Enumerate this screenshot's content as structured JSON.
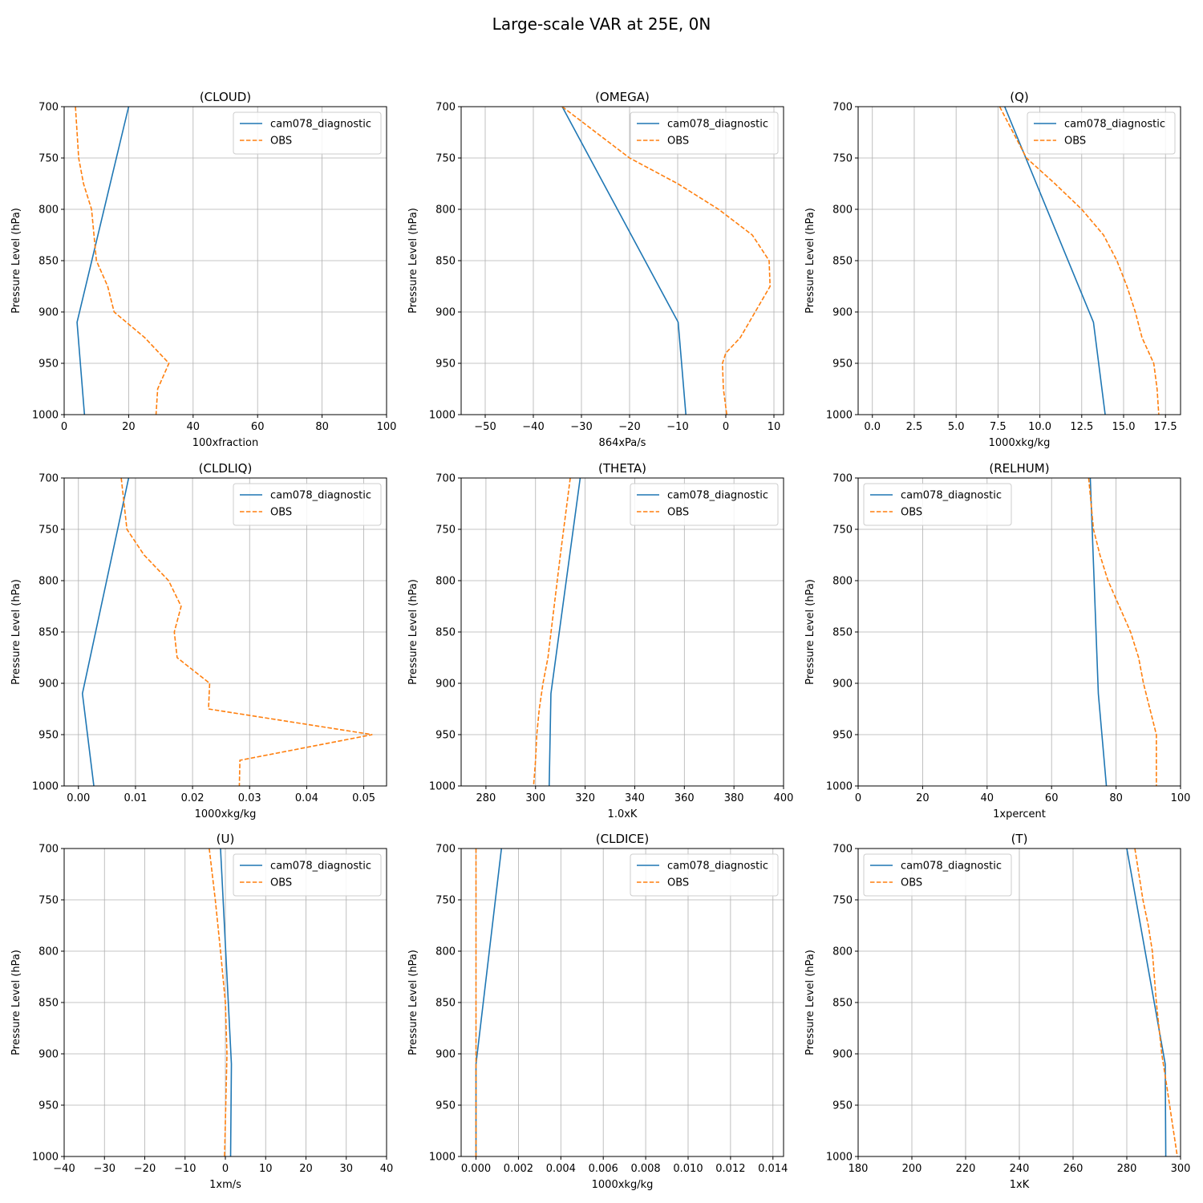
{
  "figure": {
    "title": "Large-scale VAR at 25E, 0N"
  },
  "colors": {
    "model": "#1f77b4",
    "obs": "#ff7f0e",
    "grid": "#b0b0b0",
    "axis": "#000000"
  },
  "chart_data": [
    {
      "type": "line",
      "title": "(CLOUD)",
      "xlabel": "100xfraction",
      "ylabel": "Pressure Level (hPa)",
      "xlim": [
        0,
        100
      ],
      "xticks": [
        0,
        20,
        40,
        60,
        80,
        100
      ],
      "xtick_labels": [
        "0",
        "20",
        "40",
        "60",
        "80",
        "100"
      ],
      "ylim": [
        700,
        1000
      ],
      "y_inverted": true,
      "yticks": [
        700,
        750,
        800,
        850,
        900,
        950,
        1000
      ],
      "ytick_labels": [
        "700",
        "750",
        "800",
        "850",
        "900",
        "950",
        "1000"
      ],
      "grid": true,
      "legend_position": "upper-right",
      "series": [
        {
          "name": "cam078_diagnostic",
          "style": "solid",
          "x": [
            20,
            4,
            6.3
          ],
          "y": [
            700,
            910,
            1000
          ]
        },
        {
          "name": "OBS",
          "style": "dashed",
          "x": [
            3.5,
            4,
            4.5,
            6,
            8.5,
            10,
            13.5,
            15.5,
            25,
            32.5,
            29,
            28.5
          ],
          "y": [
            700,
            725,
            750,
            775,
            800,
            850,
            875,
            900,
            925,
            950,
            975,
            1000
          ]
        }
      ]
    },
    {
      "type": "line",
      "title": "(OMEGA)",
      "xlabel": "864xPa/s",
      "ylabel": "Pressure Level (hPa)",
      "xlim": [
        -55,
        12
      ],
      "xticks": [
        -50,
        -40,
        -30,
        -20,
        -10,
        0,
        10
      ],
      "xtick_labels": [
        "−50",
        "−40",
        "−30",
        "−20",
        "−10",
        "0",
        "10"
      ],
      "ylim": [
        700,
        1000
      ],
      "y_inverted": true,
      "yticks": [
        700,
        750,
        800,
        850,
        900,
        950,
        1000
      ],
      "ytick_labels": [
        "700",
        "750",
        "800",
        "850",
        "900",
        "950",
        "1000"
      ],
      "grid": true,
      "legend_position": "upper-right",
      "series": [
        {
          "name": "cam078_diagnostic",
          "style": "solid",
          "x": [
            -34,
            -9.9,
            -8.3
          ],
          "y": [
            700,
            910,
            1000
          ]
        },
        {
          "name": "OBS",
          "style": "dashed",
          "x": [
            -34,
            -20,
            -10,
            -1.5,
            5.5,
            9,
            9.2,
            3,
            0,
            -0.7,
            -0.5,
            0.2
          ],
          "y": [
            700,
            750,
            775,
            800,
            825,
            850,
            875,
            925,
            940,
            950,
            975,
            1000
          ]
        }
      ]
    },
    {
      "type": "line",
      "title": "(Q)",
      "xlabel": "1000xkg/kg",
      "ylabel": "Pressure Level (hPa)",
      "xlim": [
        -0.85,
        18.4
      ],
      "xticks": [
        0.0,
        2.5,
        5.0,
        7.5,
        10.0,
        12.5,
        15.0,
        17.5
      ],
      "xtick_labels": [
        "0.0",
        "2.5",
        "5.0",
        "7.5",
        "10.0",
        "12.5",
        "15.0",
        "17.5"
      ],
      "ylim": [
        700,
        1000
      ],
      "y_inverted": true,
      "yticks": [
        700,
        750,
        800,
        850,
        900,
        950,
        1000
      ],
      "ytick_labels": [
        "700",
        "750",
        "800",
        "850",
        "900",
        "950",
        "1000"
      ],
      "grid": true,
      "legend_position": "upper-right",
      "series": [
        {
          "name": "cam078_diagnostic",
          "style": "solid",
          "x": [
            7.9,
            13.2,
            13.9
          ],
          "y": [
            700,
            910,
            1000
          ]
        },
        {
          "name": "OBS",
          "style": "dashed",
          "x": [
            7.6,
            9.2,
            10.9,
            12.5,
            13.8,
            14.6,
            15.2,
            15.7,
            16.1,
            16.8,
            17.0,
            17.1
          ],
          "y": [
            700,
            750,
            775,
            800,
            825,
            850,
            875,
            900,
            925,
            950,
            975,
            1000
          ]
        }
      ]
    },
    {
      "type": "line",
      "title": "(CLDLIQ)",
      "xlabel": "1000xkg/kg",
      "ylabel": "Pressure Level (hPa)",
      "xlim": [
        -0.0025,
        0.054
      ],
      "xticks": [
        0.0,
        0.01,
        0.02,
        0.03,
        0.04,
        0.05
      ],
      "xtick_labels": [
        "0.00",
        "0.01",
        "0.02",
        "0.03",
        "0.04",
        "0.05"
      ],
      "ylim": [
        700,
        1000
      ],
      "y_inverted": true,
      "yticks": [
        700,
        750,
        800,
        850,
        900,
        950,
        1000
      ],
      "ytick_labels": [
        "700",
        "750",
        "800",
        "850",
        "900",
        "950",
        "1000"
      ],
      "grid": true,
      "legend_position": "upper-right",
      "series": [
        {
          "name": "cam078_diagnostic",
          "style": "solid",
          "x": [
            0.0088,
            0.0007,
            0.0027
          ],
          "y": [
            700,
            910,
            1000
          ]
        },
        {
          "name": "OBS",
          "style": "dashed",
          "x": [
            0.0075,
            0.0085,
            0.0115,
            0.0158,
            0.018,
            0.0168,
            0.0173,
            0.023,
            0.0228,
            0.0515,
            0.0283,
            0.0282
          ],
          "y": [
            700,
            750,
            775,
            800,
            825,
            850,
            875,
            900,
            925,
            950,
            975,
            1000
          ]
        }
      ]
    },
    {
      "type": "line",
      "title": "(THETA)",
      "xlabel": "1.0xK",
      "ylabel": "Pressure Level (hPa)",
      "xlim": [
        270,
        400
      ],
      "xticks": [
        280,
        300,
        320,
        340,
        360,
        380,
        400
      ],
      "xtick_labels": [
        "280",
        "300",
        "320",
        "340",
        "360",
        "380",
        "400"
      ],
      "ylim": [
        700,
        1000
      ],
      "y_inverted": true,
      "yticks": [
        700,
        750,
        800,
        850,
        900,
        950,
        1000
      ],
      "ytick_labels": [
        "700",
        "750",
        "800",
        "850",
        "900",
        "950",
        "1000"
      ],
      "grid": true,
      "legend_position": "upper-right",
      "series": [
        {
          "name": "cam078_diagnostic",
          "style": "solid",
          "x": [
            318,
            306.2,
            305.5
          ],
          "y": [
            700,
            910,
            1000
          ]
        },
        {
          "name": "OBS",
          "style": "dashed",
          "x": [
            314,
            310,
            307.5,
            305,
            303,
            301.5,
            300.5,
            300,
            299.2
          ],
          "y": [
            700,
            775,
            825,
            875,
            900,
            925,
            950,
            975,
            1000
          ]
        }
      ]
    },
    {
      "type": "line",
      "title": "(RELHUM)",
      "xlabel": "1xpercent",
      "ylabel": "Pressure Level (hPa)",
      "xlim": [
        0,
        100
      ],
      "xticks": [
        0,
        20,
        40,
        60,
        80,
        100
      ],
      "xtick_labels": [
        "0",
        "20",
        "40",
        "60",
        "80",
        "100"
      ],
      "ylim": [
        700,
        1000
      ],
      "y_inverted": true,
      "yticks": [
        700,
        750,
        800,
        850,
        900,
        950,
        1000
      ],
      "ytick_labels": [
        "700",
        "750",
        "800",
        "850",
        "900",
        "950",
        "1000"
      ],
      "grid": true,
      "legend_position": "upper-left",
      "series": [
        {
          "name": "cam078_diagnostic",
          "style": "solid",
          "x": [
            72,
            74.5,
            77
          ],
          "y": [
            700,
            910,
            1000
          ]
        },
        {
          "name": "OBS",
          "style": "dashed",
          "x": [
            71.5,
            73,
            75,
            77.5,
            81,
            84.5,
            87,
            88.5,
            90.5,
            92.5,
            92.5,
            92.5
          ],
          "y": [
            700,
            750,
            775,
            800,
            825,
            850,
            875,
            900,
            925,
            950,
            975,
            1000
          ]
        }
      ]
    },
    {
      "type": "line",
      "title": "(U)",
      "xlabel": "1xm/s",
      "ylabel": "Pressure Level (hPa)",
      "xlim": [
        -40,
        40
      ],
      "xticks": [
        -40,
        -30,
        -20,
        -10,
        0,
        10,
        20,
        30,
        40
      ],
      "xtick_labels": [
        "−40",
        "−30",
        "−20",
        "−10",
        "0",
        "10",
        "20",
        "30",
        "40"
      ],
      "ylim": [
        700,
        1000
      ],
      "y_inverted": true,
      "yticks": [
        700,
        750,
        800,
        850,
        900,
        950,
        1000
      ],
      "ytick_labels": [
        "700",
        "750",
        "800",
        "850",
        "900",
        "950",
        "1000"
      ],
      "grid": true,
      "legend_position": "upper-right",
      "series": [
        {
          "name": "cam078_diagnostic",
          "style": "solid",
          "x": [
            -1.2,
            1.5,
            1.3
          ],
          "y": [
            700,
            910,
            1000
          ]
        },
        {
          "name": "OBS",
          "style": "dashed",
          "x": [
            -4,
            -2.5,
            -1.2,
            0,
            0.2,
            0.4,
            0.1,
            -0.2
          ],
          "y": [
            700,
            750,
            800,
            850,
            875,
            900,
            950,
            1000
          ]
        }
      ]
    },
    {
      "type": "line",
      "title": "(CLDICE)",
      "xlabel": "1000xkg/kg",
      "ylabel": "Pressure Level (hPa)",
      "xlim": [
        -0.0007,
        0.0145
      ],
      "xticks": [
        0.0,
        0.002,
        0.004,
        0.006,
        0.008,
        0.01,
        0.012,
        0.014
      ],
      "xtick_labels": [
        "0.000",
        "0.002",
        "0.004",
        "0.006",
        "0.008",
        "0.010",
        "0.012",
        "0.014"
      ],
      "ylim": [
        700,
        1000
      ],
      "y_inverted": true,
      "yticks": [
        700,
        750,
        800,
        850,
        900,
        950,
        1000
      ],
      "ytick_labels": [
        "700",
        "750",
        "800",
        "850",
        "900",
        "950",
        "1000"
      ],
      "grid": true,
      "legend_position": "upper-right",
      "series": [
        {
          "name": "cam078_diagnostic",
          "style": "solid",
          "x": [
            0.0012,
            0.0,
            0.0
          ],
          "y": [
            700,
            910,
            1000
          ]
        },
        {
          "name": "OBS",
          "style": "dashed",
          "x": [
            0.0,
            0.0,
            0.0
          ],
          "y": [
            700,
            850,
            1000
          ]
        }
      ]
    },
    {
      "type": "line",
      "title": "(T)",
      "xlabel": "1xK",
      "ylabel": "Pressure Level (hPa)",
      "xlim": [
        180,
        300
      ],
      "xticks": [
        180,
        200,
        220,
        240,
        260,
        280,
        300
      ],
      "xtick_labels": [
        "180",
        "200",
        "220",
        "240",
        "260",
        "280",
        "300"
      ],
      "ylim": [
        700,
        1000
      ],
      "y_inverted": true,
      "yticks": [
        700,
        750,
        800,
        850,
        900,
        950,
        1000
      ],
      "ytick_labels": [
        "700",
        "750",
        "800",
        "850",
        "900",
        "950",
        "1000"
      ],
      "grid": true,
      "legend_position": "upper-left",
      "series": [
        {
          "name": "cam078_diagnostic",
          "style": "solid",
          "x": [
            280,
            294.3,
            294.5
          ],
          "y": [
            700,
            910,
            1000
          ]
        },
        {
          "name": "OBS",
          "style": "dashed",
          "x": [
            283,
            286,
            288,
            289.5,
            291,
            293,
            294.5,
            296.5,
            298.8
          ],
          "y": [
            700,
            750,
            775,
            800,
            850,
            900,
            925,
            960,
            1000
          ]
        }
      ]
    }
  ]
}
